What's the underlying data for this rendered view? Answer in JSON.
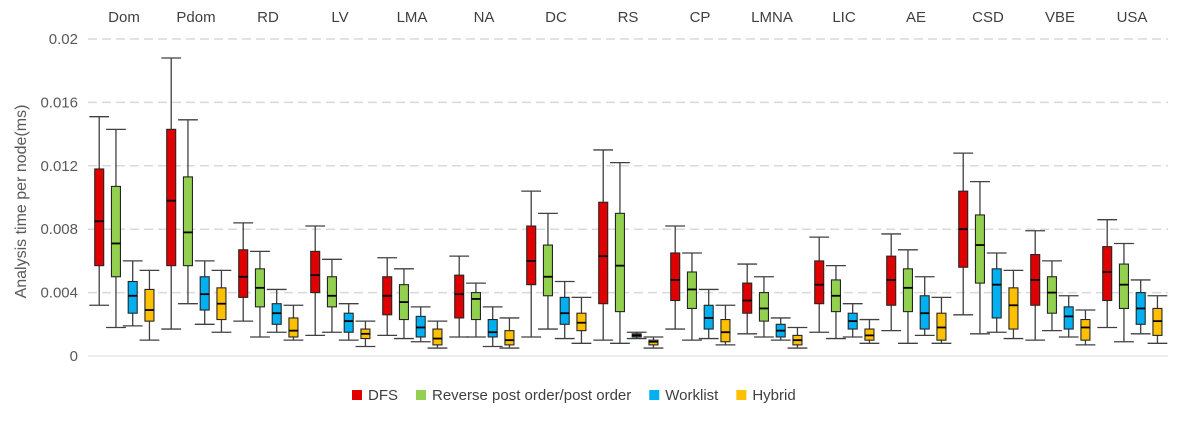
{
  "chart_data": {
    "type": "boxplot",
    "title": "",
    "xlabel": "",
    "ylabel": "Analysis time per node(ms)",
    "ylim": [
      0,
      0.02
    ],
    "yticks": [
      "0",
      "0.004",
      "0.008",
      "0.012",
      "0.016",
      "0.02"
    ],
    "ytick_values": [
      0,
      0.004,
      0.008,
      0.012,
      0.016,
      0.02
    ],
    "grid": "horizontal dashed",
    "legend_position": "bottom",
    "categories": [
      "Dom",
      "Pdom",
      "RD",
      "LV",
      "LMA",
      "NA",
      "DC",
      "RS",
      "CP",
      "LMNA",
      "LIC",
      "AE",
      "CSD",
      "VBE",
      "USA"
    ],
    "series": [
      {
        "name": "DFS",
        "color": "#e00000",
        "boxes": [
          {
            "min": 0.0032,
            "q1": 0.0057,
            "median": 0.0085,
            "q3": 0.0118,
            "max": 0.0151
          },
          {
            "min": 0.0017,
            "q1": 0.0057,
            "median": 0.0098,
            "q3": 0.0143,
            "max": 0.0188
          },
          {
            "min": 0.0022,
            "q1": 0.0037,
            "median": 0.005,
            "q3": 0.0067,
            "max": 0.0084
          },
          {
            "min": 0.0013,
            "q1": 0.004,
            "median": 0.0051,
            "q3": 0.0066,
            "max": 0.0082
          },
          {
            "min": 0.0013,
            "q1": 0.0026,
            "median": 0.0038,
            "q3": 0.005,
            "max": 0.0062
          },
          {
            "min": 0.0012,
            "q1": 0.0024,
            "median": 0.0039,
            "q3": 0.0051,
            "max": 0.0063
          },
          {
            "min": 0.0012,
            "q1": 0.0045,
            "median": 0.006,
            "q3": 0.0082,
            "max": 0.0104
          },
          {
            "min": 0.001,
            "q1": 0.0033,
            "median": 0.0063,
            "q3": 0.0097,
            "max": 0.013
          },
          {
            "min": 0.0017,
            "q1": 0.0035,
            "median": 0.0048,
            "q3": 0.0065,
            "max": 0.0082
          },
          {
            "min": 0.0014,
            "q1": 0.0027,
            "median": 0.0035,
            "q3": 0.0046,
            "max": 0.0058
          },
          {
            "min": 0.0015,
            "q1": 0.0033,
            "median": 0.0045,
            "q3": 0.006,
            "max": 0.0075
          },
          {
            "min": 0.0016,
            "q1": 0.0032,
            "median": 0.0048,
            "q3": 0.0063,
            "max": 0.0077
          },
          {
            "min": 0.0026,
            "q1": 0.0056,
            "median": 0.008,
            "q3": 0.0104,
            "max": 0.0128
          },
          {
            "min": 0.001,
            "q1": 0.0032,
            "median": 0.0048,
            "q3": 0.0064,
            "max": 0.0079
          },
          {
            "min": 0.0018,
            "q1": 0.0035,
            "median": 0.0053,
            "q3": 0.0069,
            "max": 0.0086
          }
        ]
      },
      {
        "name": "Reverse post order/post order",
        "color": "#92d050",
        "boxes": [
          {
            "min": 0.0018,
            "q1": 0.005,
            "median": 0.0071,
            "q3": 0.0107,
            "max": 0.0143
          },
          {
            "min": 0.0033,
            "q1": 0.0057,
            "median": 0.0078,
            "q3": 0.0113,
            "max": 0.0149
          },
          {
            "min": 0.0012,
            "q1": 0.0031,
            "median": 0.0043,
            "q3": 0.0055,
            "max": 0.0066
          },
          {
            "min": 0.0015,
            "q1": 0.0031,
            "median": 0.0038,
            "q3": 0.005,
            "max": 0.0061
          },
          {
            "min": 0.0011,
            "q1": 0.0023,
            "median": 0.0034,
            "q3": 0.0045,
            "max": 0.0055
          },
          {
            "min": 0.0012,
            "q1": 0.0023,
            "median": 0.0036,
            "q3": 0.004,
            "max": 0.0046
          },
          {
            "min": 0.0017,
            "q1": 0.0038,
            "median": 0.005,
            "q3": 0.007,
            "max": 0.009
          },
          {
            "min": 0.0008,
            "q1": 0.0028,
            "median": 0.0057,
            "q3": 0.009,
            "max": 0.0122
          },
          {
            "min": 0.001,
            "q1": 0.003,
            "median": 0.0042,
            "q3": 0.0053,
            "max": 0.0065
          },
          {
            "min": 0.0012,
            "q1": 0.0022,
            "median": 0.003,
            "q3": 0.004,
            "max": 0.005
          },
          {
            "min": 0.0011,
            "q1": 0.0028,
            "median": 0.0038,
            "q3": 0.0048,
            "max": 0.0057
          },
          {
            "min": 0.0008,
            "q1": 0.0028,
            "median": 0.0043,
            "q3": 0.0055,
            "max": 0.0067
          },
          {
            "min": 0.0014,
            "q1": 0.0046,
            "median": 0.007,
            "q3": 0.0089,
            "max": 0.011
          },
          {
            "min": 0.0016,
            "q1": 0.0027,
            "median": 0.004,
            "q3": 0.005,
            "max": 0.006
          },
          {
            "min": 0.0009,
            "q1": 0.003,
            "median": 0.0045,
            "q3": 0.0058,
            "max": 0.0071
          }
        ]
      },
      {
        "name": "Worklist",
        "color": "#00b0f0",
        "boxes": [
          {
            "min": 0.0019,
            "q1": 0.0027,
            "median": 0.0038,
            "q3": 0.0047,
            "max": 0.006
          },
          {
            "min": 0.002,
            "q1": 0.0029,
            "median": 0.0039,
            "q3": 0.005,
            "max": 0.006
          },
          {
            "min": 0.0015,
            "q1": 0.002,
            "median": 0.0027,
            "q3": 0.0033,
            "max": 0.0042
          },
          {
            "min": 0.001,
            "q1": 0.0015,
            "median": 0.0022,
            "q3": 0.0027,
            "max": 0.0033
          },
          {
            "min": 0.0009,
            "q1": 0.0012,
            "median": 0.0018,
            "q3": 0.0025,
            "max": 0.0031
          },
          {
            "min": 0.0006,
            "q1": 0.0012,
            "median": 0.0015,
            "q3": 0.0023,
            "max": 0.0031
          },
          {
            "min": 0.0011,
            "q1": 0.002,
            "median": 0.0027,
            "q3": 0.0037,
            "max": 0.0047
          },
          {
            "min": 0.0011,
            "q1": 0.0012,
            "median": 0.0013,
            "q3": 0.0014,
            "max": 0.0015
          },
          {
            "min": 0.0011,
            "q1": 0.0017,
            "median": 0.0024,
            "q3": 0.0032,
            "max": 0.0042
          },
          {
            "min": 0.001,
            "q1": 0.0012,
            "median": 0.0016,
            "q3": 0.002,
            "max": 0.0024
          },
          {
            "min": 0.0012,
            "q1": 0.0017,
            "median": 0.0022,
            "q3": 0.0027,
            "max": 0.0033
          },
          {
            "min": 0.0013,
            "q1": 0.0017,
            "median": 0.0027,
            "q3": 0.0038,
            "max": 0.005
          },
          {
            "min": 0.0015,
            "q1": 0.0024,
            "median": 0.0045,
            "q3": 0.0055,
            "max": 0.0065
          },
          {
            "min": 0.0012,
            "q1": 0.0017,
            "median": 0.0025,
            "q3": 0.0031,
            "max": 0.0038
          },
          {
            "min": 0.0014,
            "q1": 0.002,
            "median": 0.003,
            "q3": 0.004,
            "max": 0.0048
          }
        ]
      },
      {
        "name": "Hybrid",
        "color": "#ffc000",
        "boxes": [
          {
            "min": 0.001,
            "q1": 0.0022,
            "median": 0.0029,
            "q3": 0.0042,
            "max": 0.0054
          },
          {
            "min": 0.0015,
            "q1": 0.0023,
            "median": 0.0033,
            "q3": 0.0043,
            "max": 0.0054
          },
          {
            "min": 0.001,
            "q1": 0.0012,
            "median": 0.0016,
            "q3": 0.0024,
            "max": 0.0032
          },
          {
            "min": 0.0006,
            "q1": 0.0011,
            "median": 0.0014,
            "q3": 0.0017,
            "max": 0.0022
          },
          {
            "min": 0.0005,
            "q1": 0.0007,
            "median": 0.0011,
            "q3": 0.0017,
            "max": 0.0022
          },
          {
            "min": 0.0005,
            "q1": 0.0007,
            "median": 0.001,
            "q3": 0.0016,
            "max": 0.0024
          },
          {
            "min": 0.0008,
            "q1": 0.0016,
            "median": 0.0021,
            "q3": 0.0027,
            "max": 0.0037
          },
          {
            "min": 0.0005,
            "q1": 0.0007,
            "median": 0.0009,
            "q3": 0.001,
            "max": 0.0012
          },
          {
            "min": 0.0007,
            "q1": 0.0009,
            "median": 0.0015,
            "q3": 0.0023,
            "max": 0.0032
          },
          {
            "min": 0.0005,
            "q1": 0.0007,
            "median": 0.001,
            "q3": 0.0013,
            "max": 0.0018
          },
          {
            "min": 0.0008,
            "q1": 0.001,
            "median": 0.0013,
            "q3": 0.0017,
            "max": 0.0023
          },
          {
            "min": 0.0008,
            "q1": 0.001,
            "median": 0.0018,
            "q3": 0.0027,
            "max": 0.0037
          },
          {
            "min": 0.0011,
            "q1": 0.0017,
            "median": 0.0032,
            "q3": 0.0043,
            "max": 0.0054
          },
          {
            "min": 0.0007,
            "q1": 0.001,
            "median": 0.0018,
            "q3": 0.0023,
            "max": 0.0029
          },
          {
            "min": 0.0008,
            "q1": 0.0013,
            "median": 0.0022,
            "q3": 0.003,
            "max": 0.0038
          }
        ]
      }
    ]
  }
}
